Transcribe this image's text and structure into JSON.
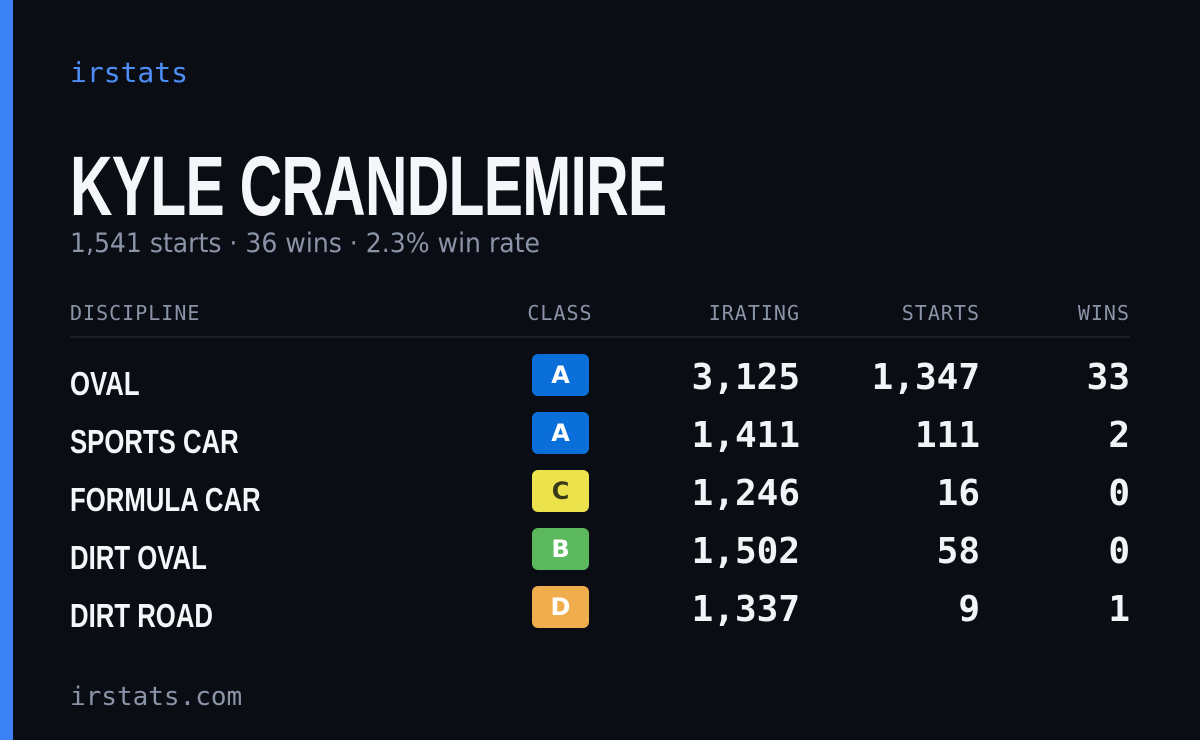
{
  "brand": "irstats",
  "name": "KYLE CRANDLEMIRE",
  "subtitle": "1,541 starts · 36 wins · 2.3% win rate",
  "table": {
    "headers": [
      "DISCIPLINE",
      "CLASS",
      "IRATING",
      "STARTS",
      "WINS"
    ],
    "rows": [
      {
        "discipline": "OVAL",
        "class": "A",
        "class_color": "#0a6fd8",
        "class_text_color": "#ffffff",
        "irating": "3,125",
        "starts": "1,347",
        "wins": "33"
      },
      {
        "discipline": "SPORTS CAR",
        "class": "A",
        "class_color": "#0a6fd8",
        "class_text_color": "#ffffff",
        "irating": "1,411",
        "starts": "111",
        "wins": "2"
      },
      {
        "discipline": "FORMULA CAR",
        "class": "C",
        "class_color": "#ebe24c",
        "class_text_color": "#3a3a1a",
        "irating": "1,246",
        "starts": "16",
        "wins": "0"
      },
      {
        "discipline": "DIRT OVAL",
        "class": "B",
        "class_color": "#5cb85c",
        "class_text_color": "#ffffff",
        "irating": "1,502",
        "starts": "58",
        "wins": "0"
      },
      {
        "discipline": "DIRT ROAD",
        "class": "D",
        "class_color": "#f0ad4e",
        "class_text_color": "#ffffff",
        "irating": "1,337",
        "starts": "9",
        "wins": "1"
      }
    ]
  },
  "footer": "irstats.com"
}
